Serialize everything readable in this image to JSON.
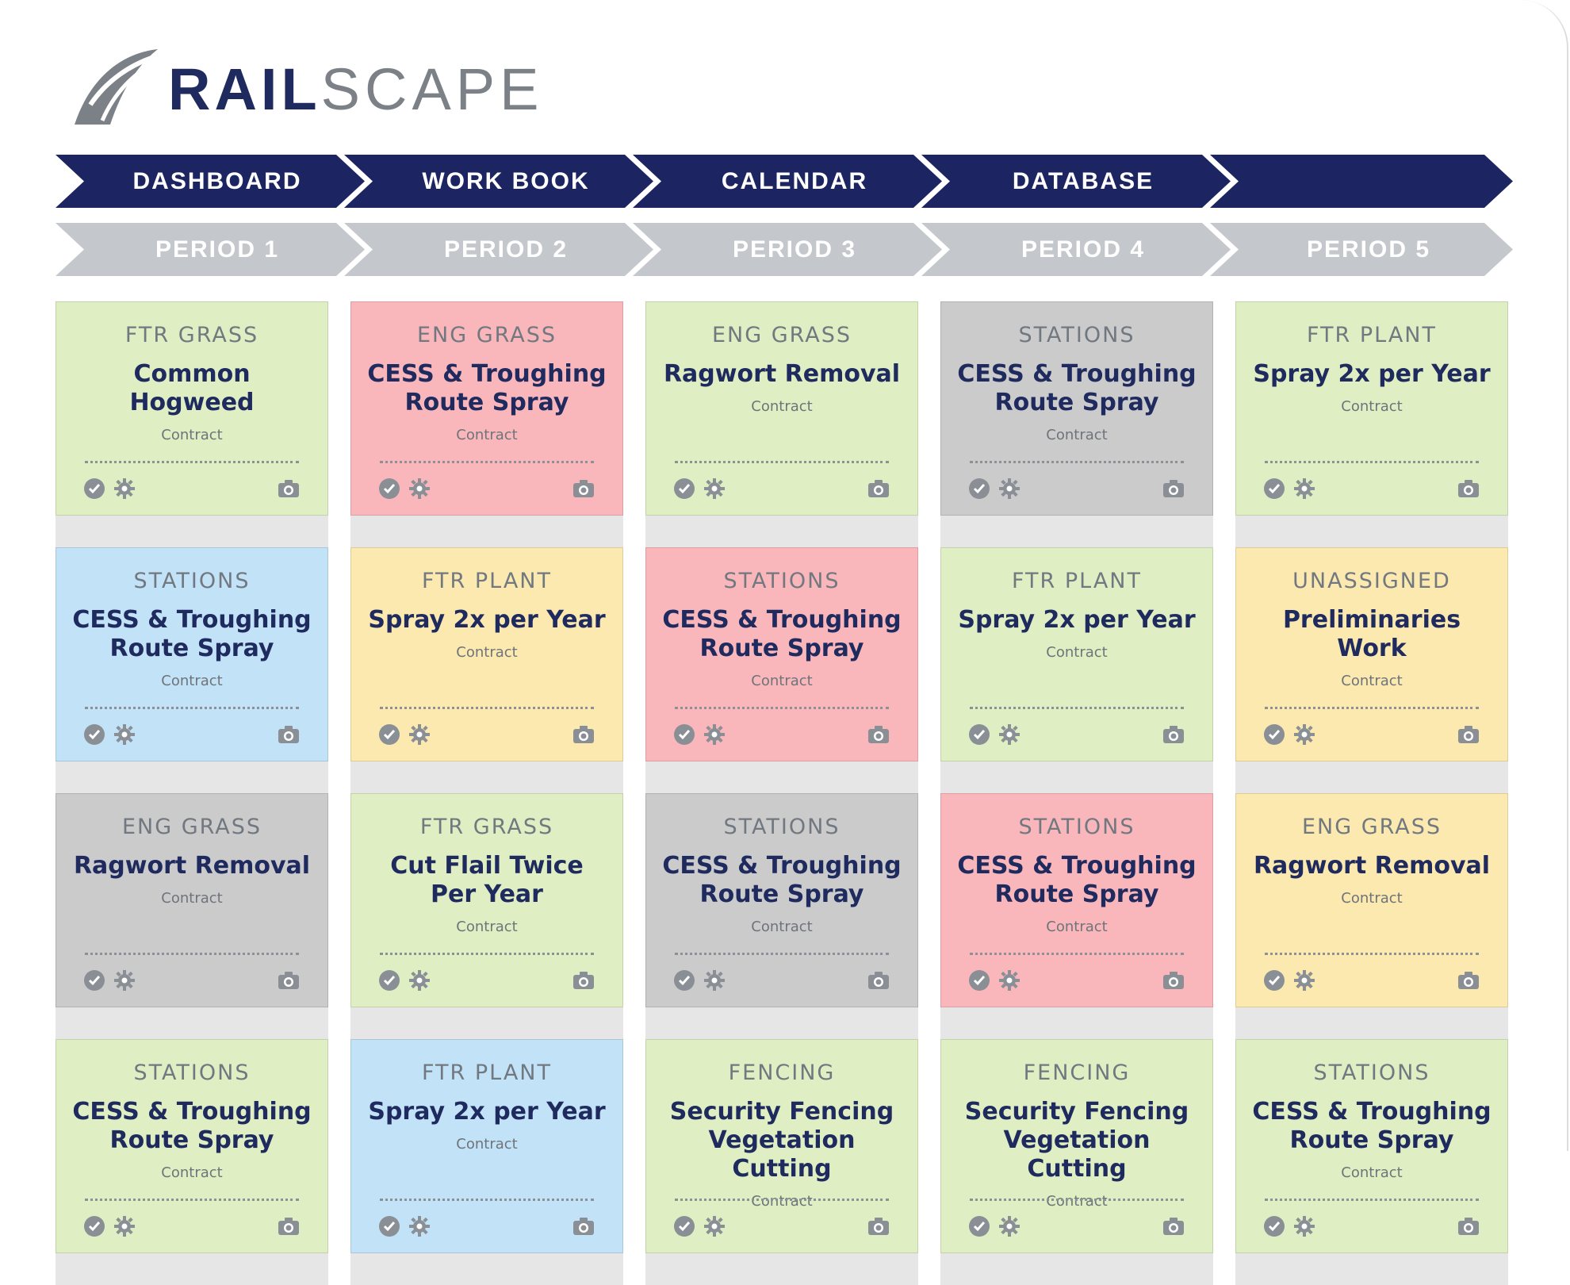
{
  "brand": {
    "name_part1": "RAIL",
    "name_part2": "SCAPE"
  },
  "nav": {
    "items": [
      "DASHBOARD",
      "WORK BOOK",
      "CALENDAR",
      "DATABASE",
      ""
    ]
  },
  "periods": {
    "items": [
      "PERIOD 1",
      "PERIOD 2",
      "PERIOD 3",
      "PERIOD 4",
      "PERIOD 5"
    ]
  },
  "colors": {
    "nav": "#1c2562",
    "period": "#c4c7cb",
    "green": "#dfefc3",
    "pink": "#f9b7bb",
    "gray": "#cbcbcb",
    "blue": "#c2e3f7",
    "yellow": "#fbe9b0"
  },
  "cards": [
    [
      {
        "category": "FTR GRASS",
        "title": "Common Hogweed",
        "sub": "Contract",
        "color": "green"
      },
      {
        "category": "STATIONS",
        "title": "CESS & Troughing Route Spray",
        "sub": "Contract",
        "color": "blue"
      },
      {
        "category": "ENG GRASS",
        "title": "Ragwort Removal",
        "sub": "Contract",
        "color": "gray"
      },
      {
        "category": "STATIONS",
        "title": "CESS & Troughing Route Spray",
        "sub": "Contract",
        "color": "green"
      }
    ],
    [
      {
        "category": "ENG GRASS",
        "title": "CESS & Troughing Route Spray",
        "sub": "Contract",
        "color": "pink"
      },
      {
        "category": "FTR PLANT",
        "title": "Spray 2x per Year",
        "sub": "Contract",
        "color": "yellow"
      },
      {
        "category": "FTR GRASS",
        "title": "Cut Flail Twice Per Year",
        "sub": "Contract",
        "color": "green"
      },
      {
        "category": "FTR PLANT",
        "title": "Spray 2x per Year",
        "sub": "Contract",
        "color": "blue"
      }
    ],
    [
      {
        "category": "ENG GRASS",
        "title": "Ragwort Removal",
        "sub": "Contract",
        "color": "green"
      },
      {
        "category": "STATIONS",
        "title": "CESS & Troughing Route Spray",
        "sub": "Contract",
        "color": "pink"
      },
      {
        "category": "STATIONS",
        "title": "CESS & Troughing Route Spray",
        "sub": "Contract",
        "color": "gray"
      },
      {
        "category": "FENCING",
        "title": "Security Fencing Vegetation Cutting",
        "sub": "Contract",
        "color": "green"
      }
    ],
    [
      {
        "category": "STATIONS",
        "title": "CESS & Troughing Route Spray",
        "sub": "Contract",
        "color": "gray"
      },
      {
        "category": "FTR PLANT",
        "title": "Spray 2x per Year",
        "sub": "Contract",
        "color": "green"
      },
      {
        "category": "STATIONS",
        "title": "CESS & Troughing Route Spray",
        "sub": "Contract",
        "color": "pink"
      },
      {
        "category": "FENCING",
        "title": "Security Fencing Vegetation Cutting",
        "sub": "Contract",
        "color": "green"
      }
    ],
    [
      {
        "category": "FTR PLANT",
        "title": "Spray 2x per Year",
        "sub": "Contract",
        "color": "green"
      },
      {
        "category": "UNASSIGNED",
        "title": "Preliminaries Work",
        "sub": "Contract",
        "color": "yellow"
      },
      {
        "category": "ENG GRASS",
        "title": "Ragwort Removal",
        "sub": "Contract",
        "color": "yellow"
      },
      {
        "category": "STATIONS",
        "title": "CESS & Troughing Route Spray",
        "sub": "Contract",
        "color": "green"
      }
    ]
  ],
  "icons": [
    "check-icon",
    "gear-icon",
    "camera-icon"
  ]
}
